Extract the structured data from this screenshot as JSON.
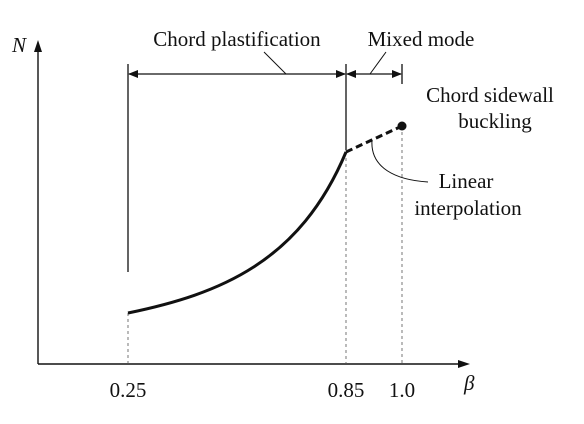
{
  "diagram": {
    "y_axis_label": "N",
    "x_axis_label": "β",
    "x_ticks": [
      "0.25",
      "0.85",
      "1.0"
    ],
    "region_labels": {
      "plastification": "Chord plastification",
      "mixed": "Mixed mode"
    },
    "annotations": {
      "buckling_line1": "Chord sidewall",
      "buckling_line2": "buckling",
      "interp_line1": "Linear",
      "interp_line2": "interpolation"
    },
    "colors": {
      "ink": "#111111",
      "background": "#ffffff"
    }
  }
}
